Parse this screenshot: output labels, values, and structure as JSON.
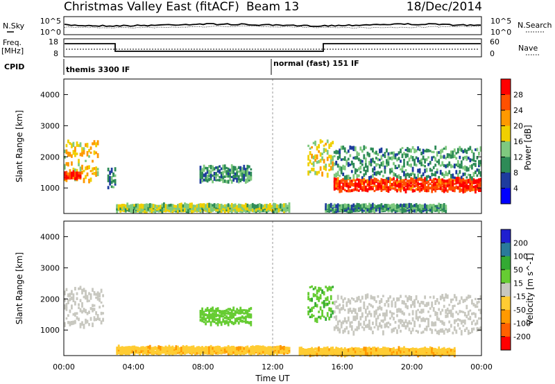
{
  "header": {
    "title": "Christmas Valley East (fitACF)",
    "beam": "Beam 13",
    "date": "18/Dec/2014"
  },
  "top_panels": {
    "nsky_label": "N.Sky",
    "nsky_ticks": [
      "10^5",
      "10^0"
    ],
    "nsearch_label": "N.Search",
    "nsearch_ticks": [
      "10^5",
      "10^0"
    ],
    "freq_label": "Freq.",
    "freq_unit": "[MHz]",
    "freq_ticks": [
      "18",
      "8"
    ],
    "nave_label": "Nave",
    "nave_ticks": [
      "60",
      "0"
    ],
    "cpid_label": "CPID",
    "cpid_1": "themis 3300 IF",
    "cpid_2": "normal (fast) 151 IF"
  },
  "chart_data": [
    {
      "type": "heatmap",
      "name": "power",
      "xlabel": "",
      "ylabel": "Slant Range [km]",
      "x_range_hours": [
        0,
        24
      ],
      "ylim": [
        180,
        4500
      ],
      "yticks": [
        "1000",
        "2000",
        "3000",
        "4000"
      ],
      "colorbar_label": "Power [dB]",
      "colorbar_ticks": [
        "4",
        "8",
        "12",
        "16",
        "20",
        "24",
        "28"
      ],
      "colorbar_range": [
        0,
        30
      ],
      "colors": [
        "#0000ff",
        "#1e3c9e",
        "#2e8b57",
        "#7fc97f",
        "#f0d000",
        "#ff9900",
        "#ff5000",
        "#ff0000"
      ],
      "regions": [
        {
          "hours": [
            0.0,
            2.0
          ],
          "range_km": [
            1200,
            2500
          ],
          "level": 18
        },
        {
          "hours": [
            0.0,
            1.0
          ],
          "range_km": [
            1300,
            1500
          ],
          "level": 26
        },
        {
          "hours": [
            2.5,
            3.0
          ],
          "range_km": [
            1000,
            1600
          ],
          "level": 8
        },
        {
          "hours": [
            7.8,
            10.8
          ],
          "range_km": [
            1200,
            1700
          ],
          "level": 10
        },
        {
          "hours": [
            3.0,
            13.0
          ],
          "range_km": [
            250,
            450
          ],
          "level": 14
        },
        {
          "hours": [
            14.0,
            15.5
          ],
          "range_km": [
            1400,
            2500
          ],
          "level": 16
        },
        {
          "hours": [
            15.5,
            24.0
          ],
          "range_km": [
            900,
            1300
          ],
          "level": 26
        },
        {
          "hours": [
            15.5,
            24.0
          ],
          "range_km": [
            1300,
            2300
          ],
          "level": 10
        },
        {
          "hours": [
            15.0,
            22.0
          ],
          "range_km": [
            250,
            450
          ],
          "level": 10
        }
      ]
    },
    {
      "type": "heatmap",
      "name": "velocity",
      "xlabel": "Time UT",
      "ylabel": "Slant Range [km]",
      "x_range_hours": [
        0,
        24
      ],
      "xticks": [
        "00:00",
        "04:00",
        "08:00",
        "12:00",
        "16:00",
        "20:00",
        "00:00"
      ],
      "ylim": [
        180,
        4500
      ],
      "yticks": [
        "1000",
        "2000",
        "3000",
        "4000"
      ],
      "colorbar_label": "Velocity [m s^-1]",
      "colorbar_ticks": [
        "200",
        "100",
        "50",
        "15",
        "-15",
        "-50",
        "-100",
        "-200"
      ],
      "colors": [
        "#ff0000",
        "#ff6000",
        "#ff9900",
        "#ffcc33",
        "#c8c8c0",
        "#66cc33",
        "#33aa33",
        "#2a7a9a",
        "#2020d0"
      ],
      "regions": [
        {
          "hours": [
            0.0,
            2.3
          ],
          "range_km": [
            1100,
            2400
          ],
          "velocity": 0
        },
        {
          "hours": [
            7.8,
            10.8
          ],
          "range_km": [
            1200,
            1700
          ],
          "velocity": 30
        },
        {
          "hours": [
            3.0,
            13.0
          ],
          "range_km": [
            250,
            450
          ],
          "velocity": -40
        },
        {
          "hours": [
            14.0,
            15.5
          ],
          "range_km": [
            1300,
            2400
          ],
          "velocity": 40
        },
        {
          "hours": [
            15.5,
            24.0
          ],
          "range_km": [
            900,
            2100
          ],
          "velocity": 0
        },
        {
          "hours": [
            13.5,
            22.5
          ],
          "range_km": [
            200,
            400
          ],
          "velocity": -40
        }
      ]
    }
  ]
}
